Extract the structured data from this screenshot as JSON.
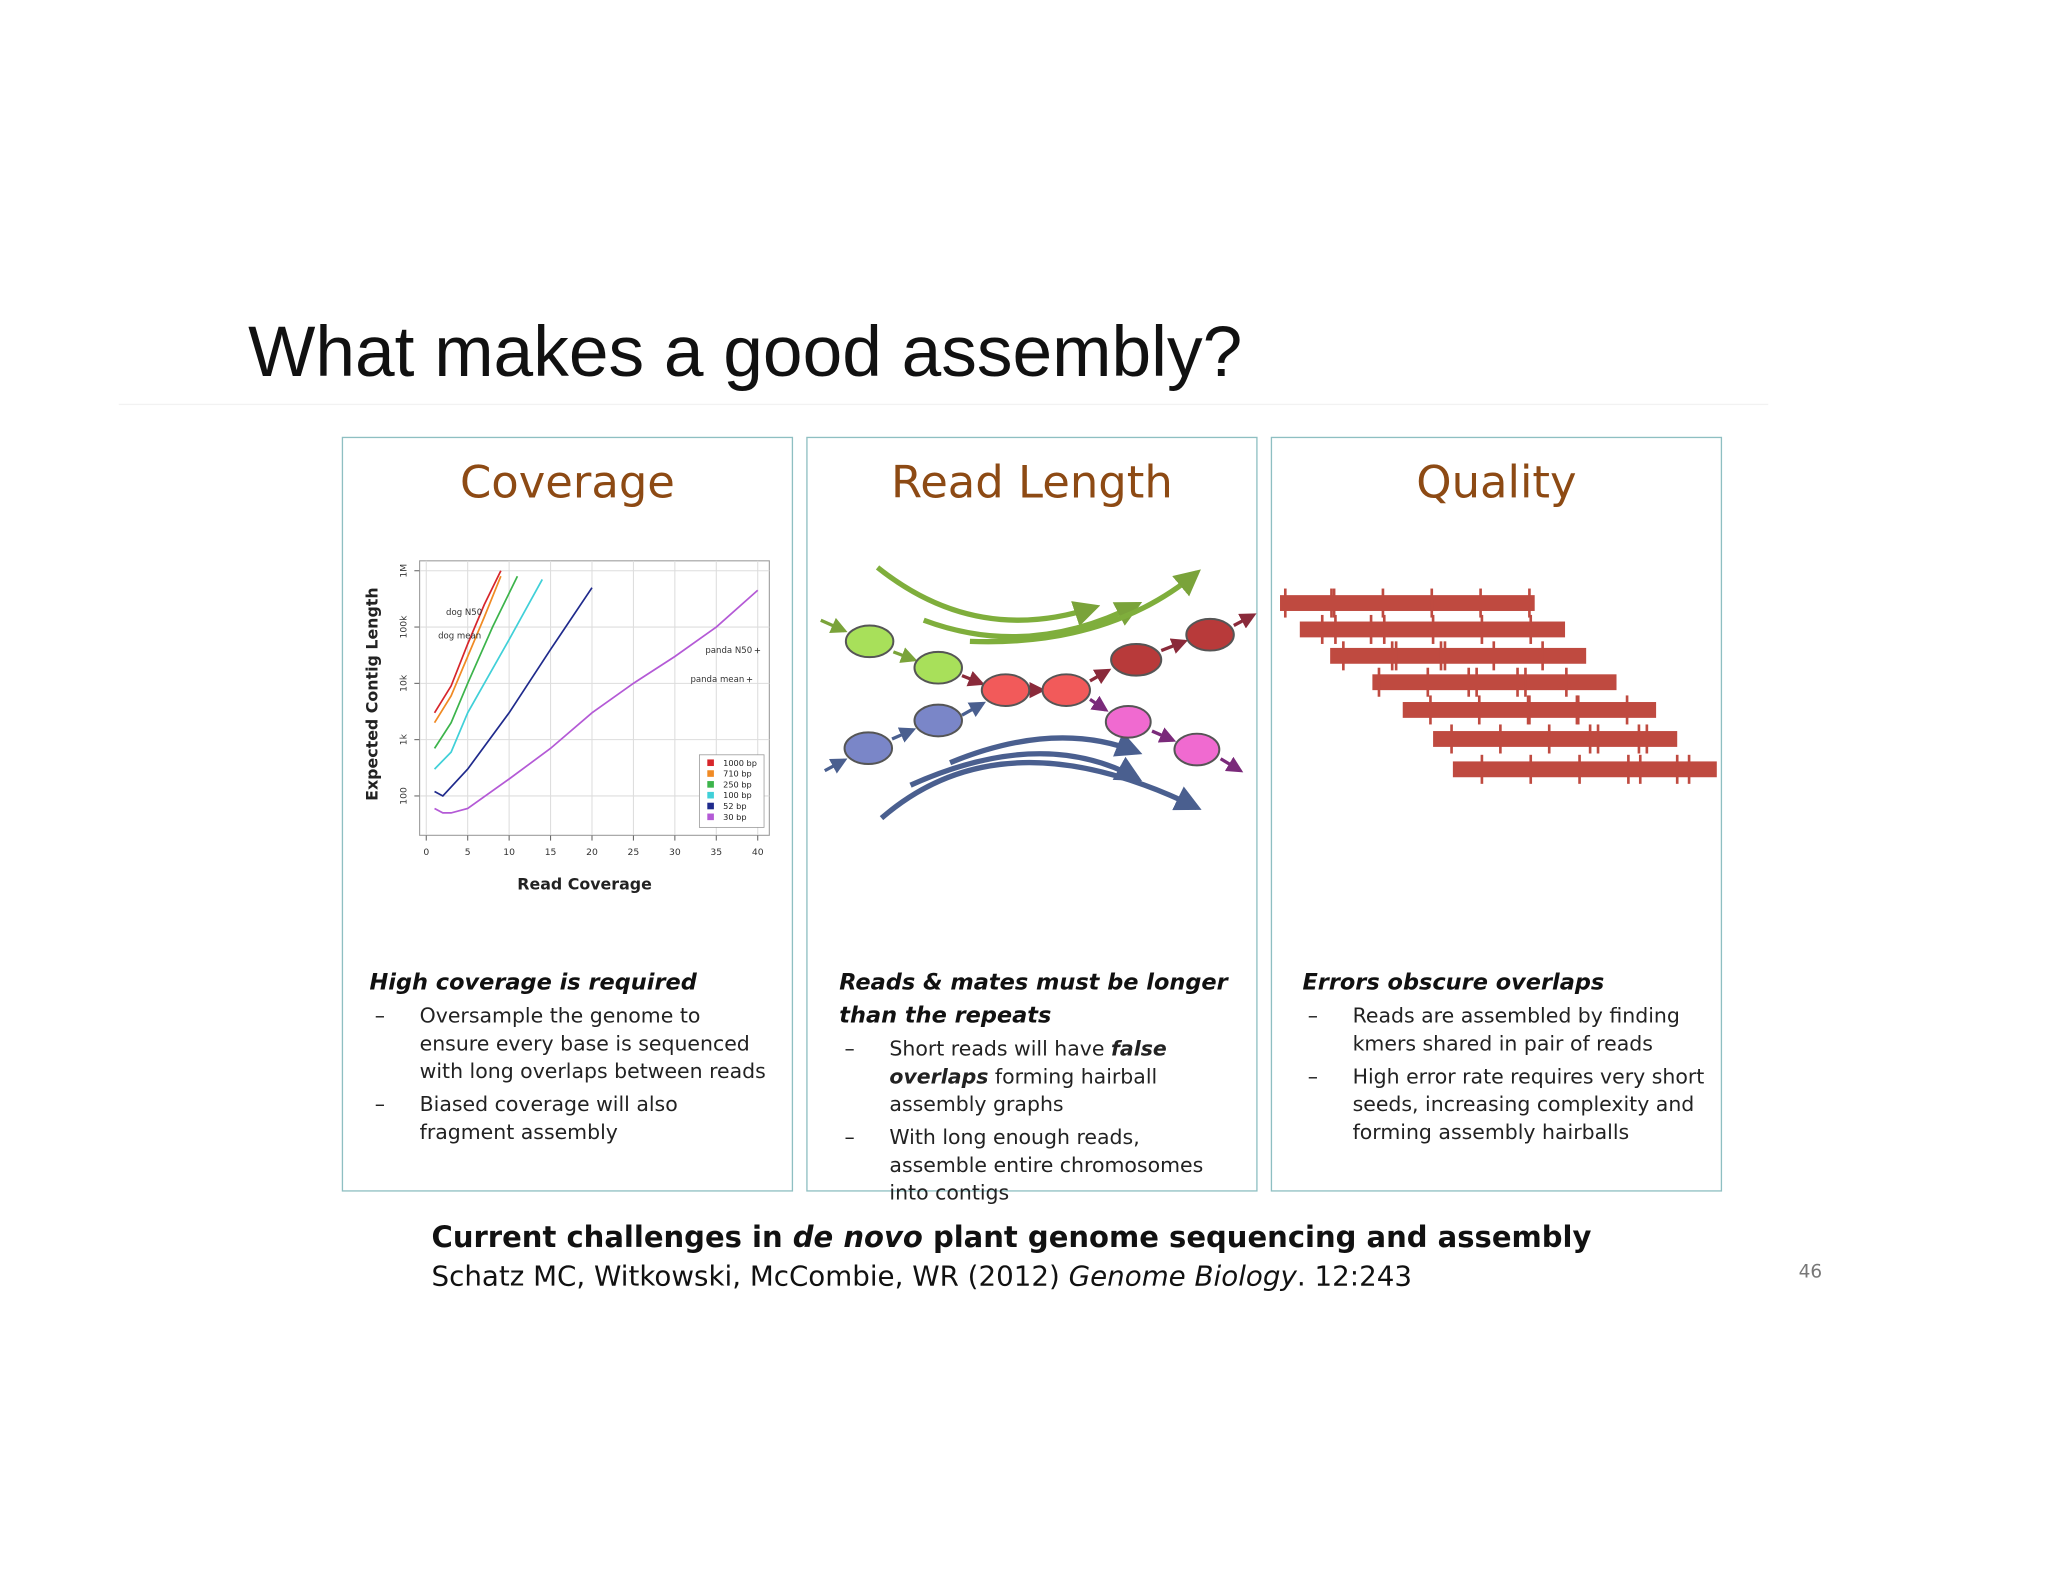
{
  "title": "What makes a good assembly?",
  "panels": [
    {
      "heading": "Coverage",
      "subheading": "High coverage is required",
      "bullets": [
        [
          "Oversample the genome to ensure every base is sequenced with long overlaps between reads"
        ],
        [
          "Biased coverage will also fragment assembly"
        ]
      ]
    },
    {
      "heading": "Read Length",
      "subheading": "Reads & mates must be longer than the repeats",
      "bullets": [
        [
          "Short reads will have ",
          "false overlaps",
          " forming hairball assembly graphs"
        ],
        [
          "With long enough reads, assemble entire chromosomes into contigs"
        ]
      ]
    },
    {
      "heading": "Quality",
      "subheading": "Errors obscure overlaps",
      "bullets": [
        [
          "Reads are assembled by finding kmers shared in pair of reads"
        ],
        [
          "High error rate requires very short seeds, increasing complexity and forming assembly hairballs"
        ]
      ]
    }
  ],
  "bullet_marker": "–",
  "coverage_plot": {
    "type": "line",
    "y_label": "Expected Contig Length",
    "x_label": "Read Coverage",
    "log_y": true,
    "grid": true,
    "xlim": [
      -0.8,
      41.4
    ],
    "xticks": [
      0,
      5,
      10,
      15,
      20,
      25,
      30,
      35,
      40
    ],
    "ylim": [
      20,
      1500000
    ],
    "yticks": [
      100,
      {
        "value": 1000,
        "label": "1k"
      },
      {
        "value": 10000,
        "label": "10k"
      },
      {
        "value": 100000,
        "label": "100k"
      },
      {
        "value": 1000000,
        "label": "1M"
      }
    ],
    "annotations": [
      "dog N50",
      "dog mean",
      "panda N50",
      "panda mean"
    ],
    "series": [
      {
        "name": "1000 bp",
        "color": "#d7262b",
        "x": [
          1,
          3,
          5,
          7,
          9
        ],
        "values": [
          3000,
          9000,
          50000,
          250000,
          1000000
        ]
      },
      {
        "name": "710 bp",
        "color": "#f08a24",
        "x": [
          1,
          3,
          5,
          7,
          9
        ],
        "values": [
          2000,
          6000,
          30000,
          150000,
          800000
        ]
      },
      {
        "name": "250 bp",
        "color": "#3cb44b",
        "x": [
          1,
          3,
          5,
          8,
          11
        ],
        "values": [
          700,
          2000,
          10000,
          100000,
          800000
        ]
      },
      {
        "name": "100 bp",
        "color": "#40d0d8",
        "x": [
          1,
          3,
          5,
          10,
          14
        ],
        "values": [
          300,
          600,
          3000,
          60000,
          700000
        ]
      },
      {
        "name": "52 bp",
        "color": "#1f2a8c",
        "x": [
          1,
          2,
          5,
          10,
          15,
          20
        ],
        "values": [
          120,
          100,
          300,
          3000,
          40000,
          500000
        ]
      },
      {
        "name": "30 bp",
        "color": "#b45ad6",
        "x": [
          1,
          2,
          3,
          5,
          10,
          15,
          20,
          25,
          30,
          35,
          40
        ],
        "values": [
          60,
          50,
          50,
          60,
          200,
          700,
          3000,
          10000,
          30000,
          100000,
          450000
        ]
      }
    ]
  },
  "citation": {
    "title": [
      "Current challenges in ",
      "de novo",
      " plant genome sequencing and assembly"
    ],
    "source": [
      "Schatz MC, Witkowski, McCombie, WR (2012) ",
      "Genome Biology",
      ". 12:243"
    ]
  },
  "page_number": "46"
}
